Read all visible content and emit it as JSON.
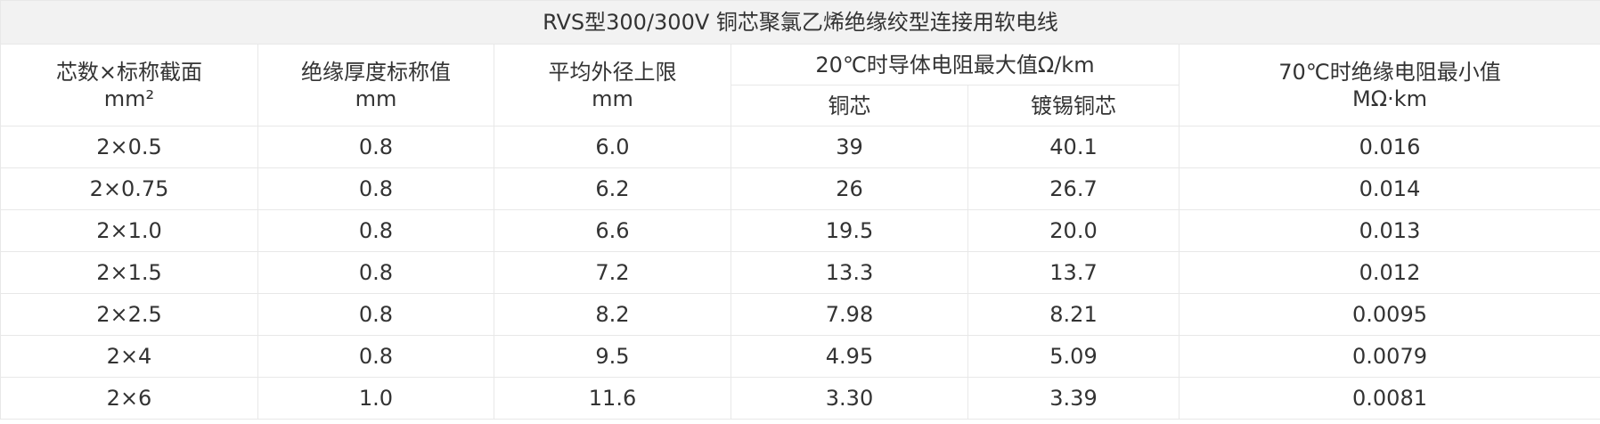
{
  "title": "RVS型300/300V  铜芯聚氯乙烯绝缘绞型连接用软电线",
  "header": {
    "cols": [
      {
        "label": "芯数×标称截面",
        "unit": "mm²"
      },
      {
        "label": "绝缘厚度标称值",
        "unit": "mm"
      },
      {
        "label": "平均外径上限",
        "unit": "mm"
      },
      {
        "label": "20℃时导体电阻最大值Ω/km",
        "sub": [
          "铜芯",
          "镀锡铜芯"
        ]
      },
      {
        "label": "70℃时绝缘电阻最小值",
        "unit": "MΩ·km"
      }
    ]
  },
  "table": {
    "rows": [
      [
        "2×0.5",
        "0.8",
        "6.0",
        "39",
        "40.1",
        "0.016"
      ],
      [
        "2×0.75",
        "0.8",
        "6.2",
        "26",
        "26.7",
        "0.014"
      ],
      [
        "2×1.0",
        "0.8",
        "6.6",
        "19.5",
        "20.0",
        "0.013"
      ],
      [
        "2×1.5",
        "0.8",
        "7.2",
        "13.3",
        "13.7",
        "0.012"
      ],
      [
        "2×2.5",
        "0.8",
        "8.2",
        "7.98",
        "8.21",
        "0.0095"
      ],
      [
        "2×4",
        "0.8",
        "9.5",
        "4.95",
        "5.09",
        "0.0079"
      ],
      [
        "2×6",
        "1.0",
        "11.6",
        "3.30",
        "3.39",
        "0.0081"
      ]
    ]
  }
}
